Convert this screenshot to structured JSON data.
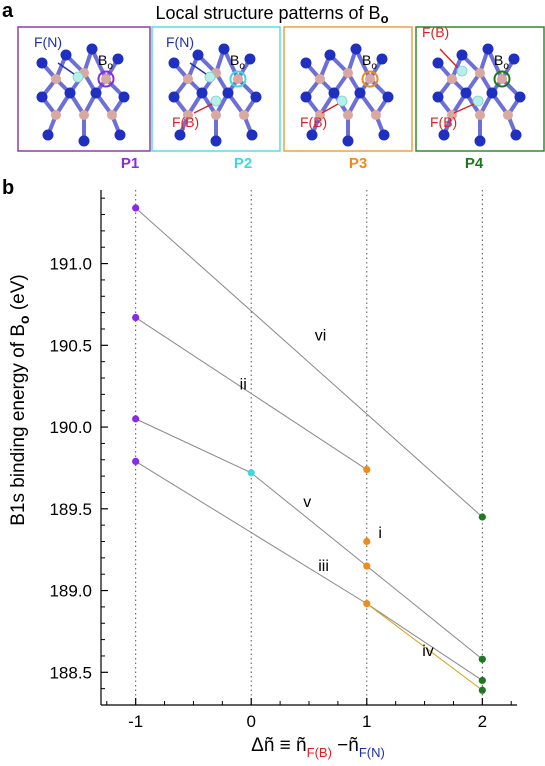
{
  "panel_a": {
    "label": "a",
    "title": "Local structure patterns of B",
    "title_sub": "o",
    "structures": [
      {
        "frame_color": "#8e3fa6",
        "ring_color": "#8a2be2",
        "labels": [
          {
            "text": "F(N)",
            "color": "#1f2fb5"
          }
        ],
        "bo_text": "B",
        "bo_sub": "o"
      },
      {
        "frame_color": "#56dede",
        "ring_color": "#3fd8e0",
        "labels": [
          {
            "text": "F(N)",
            "color": "#1f2fb5"
          },
          {
            "text": "F(B)",
            "color": "#e02020"
          }
        ],
        "bo_text": "B",
        "bo_sub": "o"
      },
      {
        "frame_color": "#f0a040",
        "ring_color": "#f08a1a",
        "labels": [
          {
            "text": "F(B)",
            "color": "#e02020"
          }
        ],
        "bo_text": "B",
        "bo_sub": "o"
      },
      {
        "frame_color": "#2e8b2e",
        "ring_color": "#1c7a1c",
        "labels": [
          {
            "text": "F(B)",
            "color": "#e02020"
          },
          {
            "text": "F(B)",
            "color": "#e02020"
          }
        ],
        "bo_text": "B",
        "bo_sub": "o"
      }
    ],
    "patterns": [
      {
        "name": "P1",
        "color": "#8a2be2"
      },
      {
        "name": "P2",
        "color": "#3fd8e0"
      },
      {
        "name": "P3",
        "color": "#f08a1a"
      },
      {
        "name": "P4",
        "color": "#1c7a1c"
      }
    ]
  },
  "panel_b": {
    "label": "b"
  },
  "chart_data": {
    "type": "scatter",
    "xlabel": "Δñ ≡ ñF(B) − ñF(N)",
    "xlabel_parts": {
      "prefix": "Δñ ≡ ñ",
      "sub1": "F(B)",
      "mid": " −ñ",
      "sub2": "F(N)",
      "sub1_color": "#e02020",
      "sub2_color": "#1f2fb5"
    },
    "ylabel": "B1s binding energy of Bo (eV)",
    "ylabel_parts": {
      "main": "B1s binding energy of B",
      "sub": "o",
      "unit": " (eV)"
    },
    "xlim": [
      -1.3,
      2.3
    ],
    "ylim": [
      188.3,
      191.45
    ],
    "x_ticks": [
      -1,
      0,
      1,
      2
    ],
    "x_tick_labels": [
      "-1",
      "0",
      "1",
      "2"
    ],
    "y_ticks": [
      188.5,
      189.0,
      189.5,
      190.0,
      190.5,
      191.0
    ],
    "y_tick_labels": [
      "188.5",
      "189.0",
      "189.5",
      "190.0",
      "190.5",
      "191.0"
    ],
    "points": [
      {
        "x": -1,
        "y": 191.34,
        "color": "#8a2be2"
      },
      {
        "x": -1,
        "y": 190.67,
        "color": "#8a2be2"
      },
      {
        "x": -1,
        "y": 190.05,
        "color": "#8a2be2"
      },
      {
        "x": -1,
        "y": 189.79,
        "color": "#8a2be2"
      },
      {
        "x": 0,
        "y": 189.72,
        "color": "#3fd8e0"
      },
      {
        "x": 1,
        "y": 189.74,
        "color": "#f08a1a"
      },
      {
        "x": 1,
        "y": 189.3,
        "color": "#f08a1a"
      },
      {
        "x": 1,
        "y": 189.15,
        "color": "#f08a1a"
      },
      {
        "x": 1,
        "y": 188.92,
        "color": "#f08a1a"
      },
      {
        "x": 2,
        "y": 189.45,
        "color": "#1c7a1c"
      },
      {
        "x": 2,
        "y": 188.58,
        "color": "#1c7a1c"
      },
      {
        "x": 2,
        "y": 188.45,
        "color": "#1c7a1c"
      },
      {
        "x": 2,
        "y": 188.39,
        "color": "#1c7a1c"
      }
    ],
    "series": [
      {
        "name": "vi",
        "x": [
          -1,
          2
        ],
        "y": [
          191.34,
          189.45
        ],
        "color": "#888888",
        "label_at": [
          0.55,
          190.53
        ]
      },
      {
        "name": "ii",
        "x": [
          -1,
          1
        ],
        "y": [
          190.67,
          189.74
        ],
        "color": "#888888",
        "label_at": [
          -0.1,
          190.23
        ]
      },
      {
        "name": "v",
        "x": [
          -1,
          0,
          1,
          2
        ],
        "y": [
          190.05,
          189.72,
          189.15,
          188.58
        ],
        "color": "#888888",
        "label_at": [
          0.45,
          189.51
        ]
      },
      {
        "name": "iii",
        "x": [
          -1,
          1,
          2
        ],
        "y": [
          189.79,
          188.92,
          188.45
        ],
        "color": "#888888",
        "label_at": [
          0.58,
          189.12
        ]
      },
      {
        "name": "iv",
        "x": [
          1,
          2
        ],
        "y": [
          188.92,
          188.39
        ],
        "color": "#d4a017",
        "label_at": [
          1.48,
          188.6
        ]
      },
      {
        "name": "i",
        "x": [
          1
        ],
        "y": [
          189.3
        ],
        "color": "#f08a1a",
        "label_at": [
          1.1,
          189.32
        ]
      }
    ]
  }
}
